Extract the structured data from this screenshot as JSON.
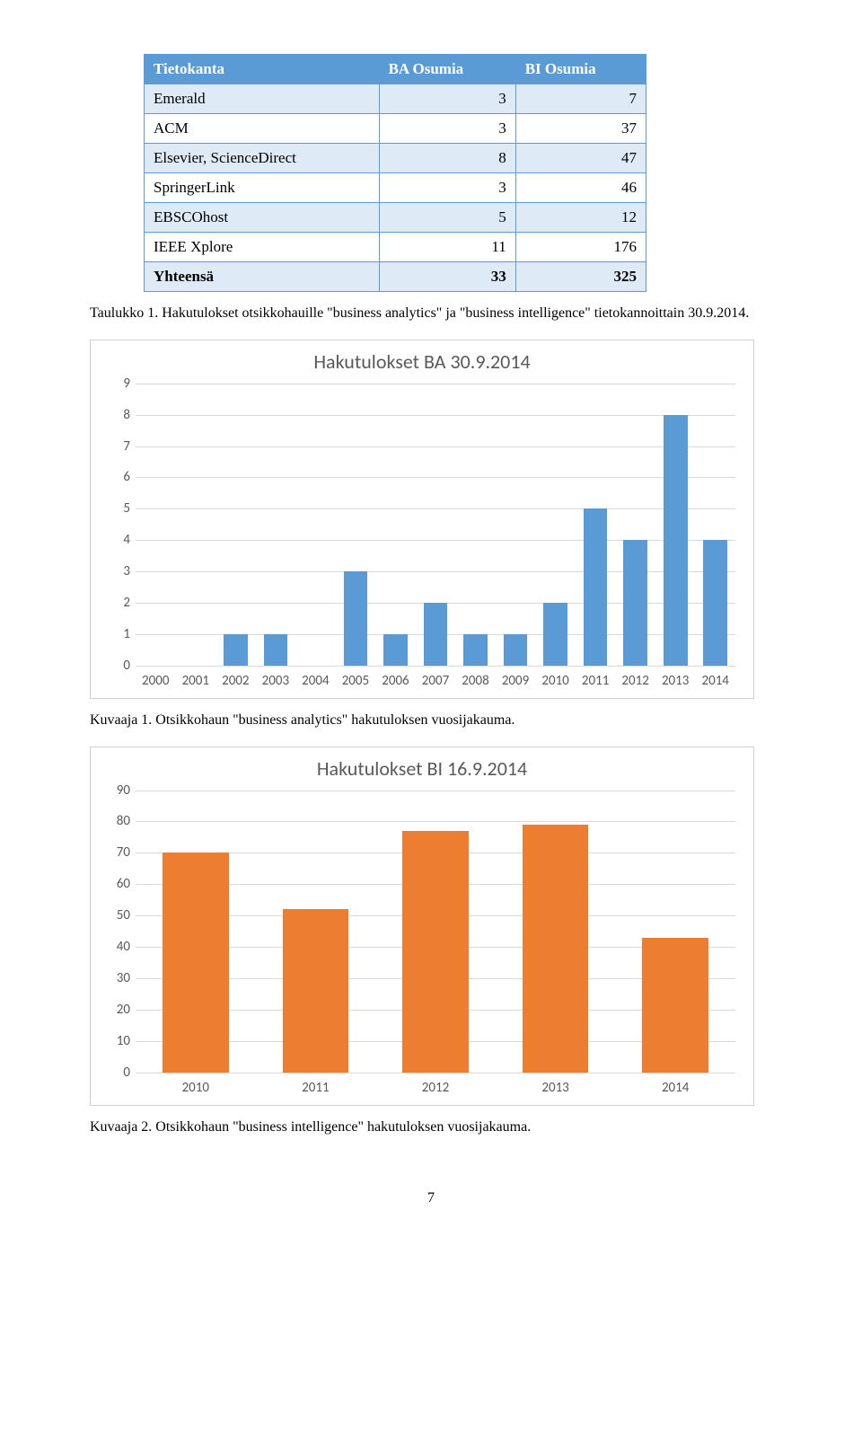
{
  "table": {
    "columns": [
      "Tietokanta",
      "BA Osumia",
      "BI Osumia"
    ],
    "rows": [
      {
        "name": "Emerald",
        "ba": 3,
        "bi": 7
      },
      {
        "name": "ACM",
        "ba": 3,
        "bi": 37
      },
      {
        "name": "Elsevier, ScienceDirect",
        "ba": 8,
        "bi": 47
      },
      {
        "name": "SpringerLink",
        "ba": 3,
        "bi": 46
      },
      {
        "name": "EBSCOhost",
        "ba": 5,
        "bi": 12
      },
      {
        "name": "IEEE Xplore",
        "ba": 11,
        "bi": 176
      }
    ],
    "total": {
      "name": "Yhteensä",
      "ba": 33,
      "bi": 325
    },
    "header_bg": "#5b9bd5",
    "header_fg": "#ffffff",
    "even_bg": "#deebf6",
    "border_color": "#5b9bd5"
  },
  "caption_table": "Taulukko 1. Hakutulokset otsikkohauille \"business analytics\" ja \"business intelligence\" tietokannoittain 30.9.2014.",
  "chart_ba": {
    "type": "bar",
    "title": "Hakutulokset BA 30.9.2014",
    "title_fontsize": 22,
    "title_color": "#595959",
    "categories": [
      "2000",
      "2001",
      "2002",
      "2003",
      "2004",
      "2005",
      "2006",
      "2007",
      "2008",
      "2009",
      "2010",
      "2011",
      "2012",
      "2013",
      "2014"
    ],
    "values": [
      0,
      0,
      1,
      1,
      0,
      3,
      1,
      2,
      1,
      1,
      2,
      5,
      4,
      8,
      4
    ],
    "ylim": [
      0,
      9
    ],
    "ytick_step": 1,
    "bar_color": "#5b9bd5",
    "grid_color": "#d9d9d9",
    "background_color": "#ffffff",
    "axis_label_color": "#595959",
    "bar_width": 0.6
  },
  "caption_ba": "Kuvaaja 1. Otsikkohaun \"business analytics\" hakutuloksen vuosijakauma.",
  "chart_bi": {
    "type": "bar",
    "title": "Hakutulokset BI 16.9.2014",
    "title_fontsize": 22,
    "title_color": "#595959",
    "categories": [
      "2010",
      "2011",
      "2012",
      "2013",
      "2014"
    ],
    "values": [
      70,
      52,
      77,
      79,
      43
    ],
    "ylim": [
      0,
      90
    ],
    "ytick_step": 10,
    "bar_color": "#ed7d31",
    "grid_color": "#d9d9d9",
    "background_color": "#ffffff",
    "axis_label_color": "#595959",
    "bar_width": 0.55
  },
  "caption_bi": "Kuvaaja 2. Otsikkohaun \"business intelligence\" hakutuloksen vuosijakauma.",
  "page_number": "7"
}
